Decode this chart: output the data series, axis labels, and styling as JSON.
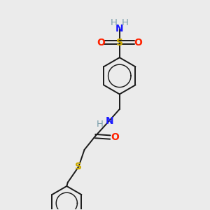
{
  "bg_color": "#ebebeb",
  "atom_colors": {
    "C": "#000000",
    "H": "#7a9faa",
    "N": "#1a1aff",
    "O": "#ff2200",
    "S": "#ccaa00"
  },
  "bond_color": "#1a1a1a",
  "bond_width": 1.4,
  "fig_size": [
    3.0,
    3.0
  ],
  "dpi": 100
}
